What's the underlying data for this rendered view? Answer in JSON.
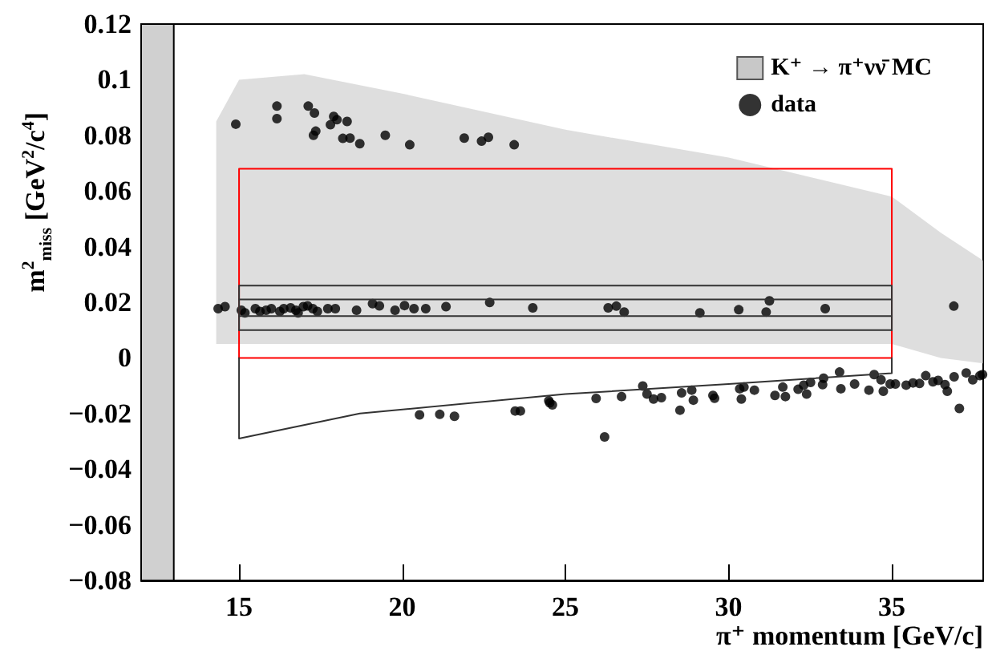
{
  "chart_data": {
    "type": "scatter",
    "xlabel": "π⁺ momentum [GeV/c]",
    "ylabel": "m$^{2}$$_{miss}$ [GeV$^{2}$/c$^{4}$]",
    "xlim": [
      12,
      37.8
    ],
    "xticks": [
      15,
      20,
      25,
      30,
      35
    ],
    "ylim": [
      -0.08,
      0.12
    ],
    "yticks": [
      {
        "value": -0.08,
        "label": "−0.08"
      },
      {
        "value": -0.06,
        "label": "−0.06"
      },
      {
        "value": -0.04,
        "label": "−0.04"
      },
      {
        "value": -0.02,
        "label": "−0.02"
      },
      0,
      0.02,
      0.04,
      0.06,
      0.08,
      0.1,
      0.12
    ],
    "legend": "top right",
    "grid": false,
    "bands": [
      {
        "axis": "x",
        "from": 12,
        "to": 13,
        "color": "#d0d0d0"
      }
    ],
    "series": [
      {
        "name": "K⁺ → π⁺νν̄ MC",
        "type": "area",
        "color": "#c8c8c8",
        "x": [
          14.3,
          15,
          17,
          20,
          25,
          30,
          35,
          36.5,
          37.8
        ],
        "values": [
          null,
          null,
          null,
          null,
          null,
          null,
          null,
          null,
          null
        ],
        "lower": [
          0.005,
          0.005,
          0.005,
          0.005,
          0.005,
          0.005,
          0.005,
          0,
          -0.002
        ],
        "upper": [
          0.085,
          0.1,
          0.102,
          0.095,
          0.082,
          0.072,
          0.058,
          0.045,
          0.035
        ]
      },
      {
        "type": "line",
        "color": "#ff0000",
        "line_style": "solid",
        "x": [
          15,
          15,
          35,
          35
        ],
        "values": [
          0,
          0.068,
          0.068,
          0
        ]
      },
      {
        "type": "line",
        "color": "#ff0000",
        "line_style": "solid",
        "x": [
          15,
          35
        ],
        "values": [
          0,
          0
        ]
      },
      {
        "type": "line",
        "color": "#333333",
        "line_style": "solid",
        "x": [
          15,
          15,
          35,
          35
        ],
        "values": [
          0.01,
          0.026,
          0.026,
          0.01
        ]
      },
      {
        "type": "line",
        "color": "#333333",
        "line_style": "solid",
        "x": [
          15,
          35
        ],
        "values": [
          0.01,
          0.01
        ]
      },
      {
        "type": "line",
        "color": "#333333",
        "line_style": "solid",
        "x": [
          15,
          35
        ],
        "values": [
          0.015,
          0.015
        ]
      },
      {
        "type": "line",
        "color": "#333333",
        "line_style": "solid",
        "x": [
          15,
          35
        ],
        "values": [
          0.021,
          0.021
        ]
      },
      {
        "type": "line",
        "color": "#333333",
        "line_style": "solid",
        "x": [
          15,
          15,
          18.7,
          25,
          30,
          35,
          35
        ],
        "values": [
          0,
          -0.029,
          -0.02,
          -0.013,
          -0.0094,
          -0.0055,
          0
        ]
      },
      {
        "name": "data",
        "color": "#000000",
        "marker": "circle",
        "x": [
          14.9,
          16.16,
          16.16,
          17.12,
          17.31,
          17.35,
          17.28,
          17.9,
          17.8,
          18.0,
          18.31,
          18.18,
          18.4,
          18.7,
          19.48,
          20.23,
          21.9,
          22.43,
          22.64,
          23.43,
          14.36,
          14.57,
          15.07,
          15.18,
          15.5,
          15.64,
          15.83,
          15.99,
          16.25,
          16.37,
          16.58,
          16.74,
          16.81,
          16.97,
          17.1,
          17.26,
          17.4,
          17.72,
          17.95,
          18.6,
          19.09,
          19.3,
          19.78,
          20.07,
          20.36,
          20.72,
          21.34,
          22.68,
          24.0,
          26.31,
          26.56,
          26.8,
          29.12,
          30.31,
          31.15,
          31.25,
          32.96,
          36.9,
          20.53,
          21.15,
          21.6,
          23.46,
          23.62,
          24.49,
          24.6,
          24.52,
          25.94,
          26.2,
          26.72,
          27.37,
          27.5,
          27.7,
          27.94,
          28.51,
          28.56,
          28.87,
          28.92,
          29.52,
          29.57,
          30.34,
          30.39,
          30.47,
          30.79,
          31.42,
          31.66,
          31.74,
          32.13,
          32.3,
          32.39,
          32.51,
          32.88,
          32.91,
          33.4,
          33.44,
          33.86,
          34.3,
          34.46,
          34.67,
          34.74,
          34.95,
          35.11,
          35.44,
          35.65,
          35.85,
          36.04,
          36.26,
          36.42,
          36.63,
          36.7,
          36.91,
          37.07,
          37.28,
          37.48,
          37.7,
          37.78
        ],
        "values": [
          0.084,
          0.0905,
          0.086,
          0.0905,
          0.088,
          0.0815,
          0.08,
          0.0868,
          0.0838,
          0.0856,
          0.085,
          0.0789,
          0.079,
          0.077,
          0.08,
          0.0766,
          0.079,
          0.0779,
          0.0793,
          0.0766,
          0.0177,
          0.0184,
          0.0171,
          0.0162,
          0.0177,
          0.0167,
          0.0171,
          0.0177,
          0.0167,
          0.0177,
          0.018,
          0.0171,
          0.0162,
          0.0184,
          0.0187,
          0.0177,
          0.0167,
          0.0177,
          0.0177,
          0.0171,
          0.0195,
          0.0187,
          0.0171,
          0.0188,
          0.0177,
          0.0177,
          0.0184,
          0.0199,
          0.018,
          0.018,
          0.0186,
          0.0165,
          0.0162,
          0.0173,
          0.0165,
          0.0205,
          0.0177,
          0.0186,
          -0.0205,
          -0.0203,
          -0.021,
          -0.0191,
          -0.0191,
          -0.0154,
          -0.0169,
          -0.0162,
          -0.0146,
          -0.0284,
          -0.0139,
          -0.0101,
          -0.013,
          -0.0148,
          -0.0143,
          -0.0188,
          -0.0126,
          -0.0116,
          -0.0152,
          -0.0135,
          -0.0145,
          -0.0111,
          -0.0148,
          -0.0105,
          -0.0116,
          -0.0135,
          -0.0105,
          -0.0139,
          -0.0113,
          -0.0098,
          -0.013,
          -0.0088,
          -0.0096,
          -0.0073,
          -0.0051,
          -0.0111,
          -0.0094,
          -0.0116,
          -0.006,
          -0.0079,
          -0.012,
          -0.0094,
          -0.0094,
          -0.0098,
          -0.009,
          -0.0092,
          -0.0064,
          -0.0086,
          -0.0081,
          -0.0096,
          -0.012,
          -0.0068,
          -0.0182,
          -0.0054,
          -0.0079,
          -0.0064,
          -0.006
        ]
      }
    ]
  }
}
